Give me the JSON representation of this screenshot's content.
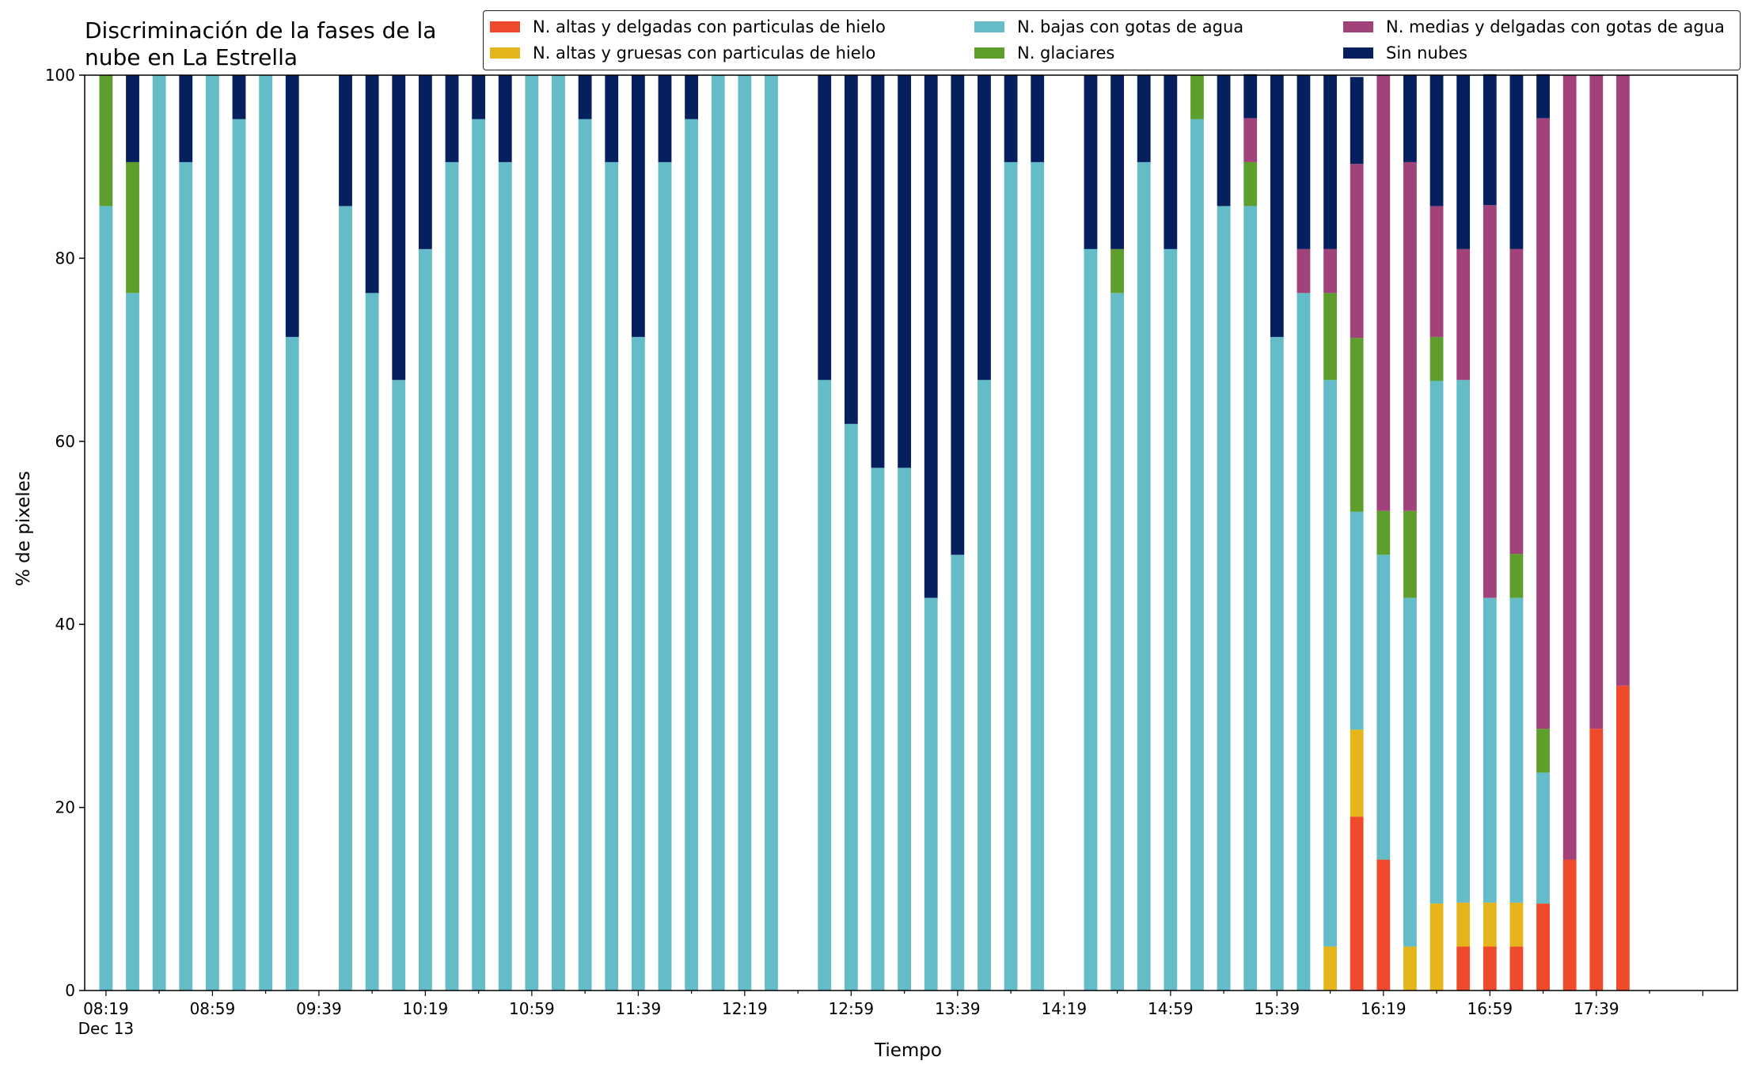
{
  "chart_data": {
    "type": "bar",
    "stacked": true,
    "title_lines": [
      "Discriminación de la fases de la",
      "nube en La Estrella"
    ],
    "xlabel": "Tiempo",
    "ylabel": "% de pixeles",
    "ylim": [
      0,
      100
    ],
    "yticks": [
      0,
      20,
      40,
      60,
      80,
      100
    ],
    "xlim_minutes_after_08_19": [
      -8,
      613
    ],
    "x_interval_minutes": 10,
    "xticks": [
      {
        "label": "08:19",
        "sublabel": "Dec 13",
        "minute": 0
      },
      {
        "label": "08:59",
        "minute": 40
      },
      {
        "label": "09:39",
        "minute": 80
      },
      {
        "label": "10:19",
        "minute": 120
      },
      {
        "label": "10:59",
        "minute": 160
      },
      {
        "label": "11:39",
        "minute": 200
      },
      {
        "label": "12:19",
        "minute": 240
      },
      {
        "label": "12:59",
        "minute": 280
      },
      {
        "label": "13:39",
        "minute": 320
      },
      {
        "label": "14:19",
        "minute": 360
      },
      {
        "label": "14:59",
        "minute": 400
      },
      {
        "label": "15:39",
        "minute": 440
      },
      {
        "label": "16:19",
        "minute": 480
      },
      {
        "label": "16:59",
        "minute": 520
      },
      {
        "label": "17:39",
        "minute": 560
      }
    ],
    "legend_position": "top",
    "series": [
      {
        "name": "N. altas y delgadas con particulas de hielo",
        "color": "#ef4a2b"
      },
      {
        "name": "N. altas y gruesas con particulas de hielo",
        "color": "#e6b51c"
      },
      {
        "name": "N. bajas con gotas de agua",
        "color": "#63bcc8"
      },
      {
        "name": "N. glaciares",
        "color": "#5e9e2c"
      },
      {
        "name": "N. medias y delgadas con gotas de agua",
        "color": "#a2427a"
      },
      {
        "name": "Sin nubes",
        "color": "#061f5f"
      }
    ],
    "bars": [
      {
        "time": "08:19",
        "values": [
          0,
          0,
          85.7,
          14.3,
          0,
          0
        ]
      },
      {
        "time": "08:29",
        "values": [
          0,
          0,
          76.2,
          14.3,
          0,
          9.5
        ]
      },
      {
        "time": "08:39",
        "values": [
          0,
          0,
          100,
          0,
          0,
          0
        ]
      },
      {
        "time": "08:49",
        "values": [
          0,
          0,
          90.5,
          0,
          0,
          9.5
        ]
      },
      {
        "time": "08:59",
        "values": [
          0,
          0,
          100,
          0,
          0,
          0
        ]
      },
      {
        "time": "09:09",
        "values": [
          0,
          0,
          95.2,
          0,
          0,
          4.8
        ]
      },
      {
        "time": "09:19",
        "values": [
          0,
          0,
          100,
          0,
          0,
          0
        ]
      },
      {
        "time": "09:29",
        "values": [
          0,
          0,
          71.4,
          0,
          0,
          28.6
        ]
      },
      {
        "time": "09:49",
        "values": [
          0,
          0,
          85.7,
          0,
          0,
          14.3
        ]
      },
      {
        "time": "09:59",
        "values": [
          0,
          0,
          76.2,
          0,
          0,
          23.8
        ]
      },
      {
        "time": "10:09",
        "values": [
          0,
          0,
          66.7,
          0,
          0,
          33.3
        ]
      },
      {
        "time": "10:19",
        "values": [
          0,
          0,
          81.0,
          0,
          0,
          19.0
        ]
      },
      {
        "time": "10:29",
        "values": [
          0,
          0,
          90.5,
          0,
          0,
          9.5
        ]
      },
      {
        "time": "10:39",
        "values": [
          0,
          0,
          95.2,
          0,
          0,
          4.8
        ]
      },
      {
        "time": "10:49",
        "values": [
          0,
          0,
          90.5,
          0,
          0,
          9.5
        ]
      },
      {
        "time": "10:59",
        "values": [
          0,
          0,
          100,
          0,
          0,
          0
        ]
      },
      {
        "time": "11:09",
        "values": [
          0,
          0,
          100,
          0,
          0,
          0
        ]
      },
      {
        "time": "11:19",
        "values": [
          0,
          0,
          95.2,
          0,
          0,
          4.8
        ]
      },
      {
        "time": "11:29",
        "values": [
          0,
          0,
          90.5,
          0,
          0,
          9.5
        ]
      },
      {
        "time": "11:39",
        "values": [
          0,
          0,
          71.4,
          0,
          0,
          28.6
        ]
      },
      {
        "time": "11:49",
        "values": [
          0,
          0,
          90.5,
          0,
          0,
          9.5
        ]
      },
      {
        "time": "11:59",
        "values": [
          0,
          0,
          95.2,
          0,
          0,
          4.8
        ]
      },
      {
        "time": "12:09",
        "values": [
          0,
          0,
          100,
          0,
          0,
          0
        ]
      },
      {
        "time": "12:19",
        "values": [
          0,
          0,
          100,
          0,
          0,
          0
        ]
      },
      {
        "time": "12:29",
        "values": [
          0,
          0,
          100,
          0,
          0,
          0
        ]
      },
      {
        "time": "12:49",
        "values": [
          0,
          0,
          66.7,
          0,
          0,
          33.3
        ]
      },
      {
        "time": "12:59",
        "values": [
          0,
          0,
          61.9,
          0,
          0,
          38.1
        ]
      },
      {
        "time": "13:09",
        "values": [
          0,
          0,
          57.1,
          0,
          0,
          42.9
        ]
      },
      {
        "time": "13:19",
        "values": [
          0,
          0,
          57.1,
          0,
          0,
          42.9
        ]
      },
      {
        "time": "13:29",
        "values": [
          0,
          0,
          42.9,
          0,
          0,
          57.1
        ]
      },
      {
        "time": "13:39",
        "values": [
          0,
          0,
          47.6,
          0,
          0,
          52.4
        ]
      },
      {
        "time": "13:49",
        "values": [
          0,
          0,
          66.7,
          0,
          0,
          33.3
        ]
      },
      {
        "time": "13:59",
        "values": [
          0,
          0,
          90.5,
          0,
          0,
          9.5
        ]
      },
      {
        "time": "14:09",
        "values": [
          0,
          0,
          90.5,
          0,
          0,
          9.5
        ]
      },
      {
        "time": "14:29",
        "values": [
          0,
          0,
          81.0,
          0,
          0,
          19.0
        ]
      },
      {
        "time": "14:39",
        "values": [
          0,
          0,
          76.2,
          4.8,
          0,
          19.0
        ]
      },
      {
        "time": "14:49",
        "values": [
          0,
          0,
          90.5,
          0,
          0,
          9.5
        ]
      },
      {
        "time": "14:59",
        "values": [
          0,
          0,
          81.0,
          0,
          0,
          19.0
        ]
      },
      {
        "time": "15:09",
        "values": [
          0,
          0,
          95.2,
          4.8,
          0,
          0
        ]
      },
      {
        "time": "15:19",
        "values": [
          0,
          0,
          85.7,
          0,
          0,
          14.3
        ]
      },
      {
        "time": "15:29",
        "values": [
          0,
          0,
          85.7,
          4.8,
          4.8,
          4.8
        ]
      },
      {
        "time": "15:39",
        "values": [
          0,
          0,
          71.4,
          0,
          0,
          28.6
        ]
      },
      {
        "time": "15:49",
        "values": [
          0,
          0,
          76.2,
          0,
          4.8,
          19.0
        ]
      },
      {
        "time": "15:59",
        "values": [
          0,
          4.8,
          61.9,
          9.5,
          4.8,
          19.0
        ]
      },
      {
        "time": "16:09",
        "values": [
          19.0,
          9.5,
          23.8,
          19.0,
          19.0,
          9.5
        ]
      },
      {
        "time": "16:19",
        "values": [
          14.3,
          0,
          33.3,
          4.8,
          47.6,
          0
        ]
      },
      {
        "time": "16:29",
        "values": [
          0,
          4.8,
          38.1,
          9.5,
          38.1,
          9.5
        ]
      },
      {
        "time": "16:39",
        "values": [
          0,
          9.5,
          57.1,
          4.8,
          14.3,
          14.3
        ]
      },
      {
        "time": "16:49",
        "values": [
          4.8,
          4.8,
          57.1,
          0,
          14.3,
          19.0
        ]
      },
      {
        "time": "16:59",
        "values": [
          4.8,
          4.8,
          33.3,
          0,
          42.9,
          14.3
        ]
      },
      {
        "time": "17:09",
        "values": [
          4.8,
          4.8,
          33.3,
          4.8,
          33.3,
          19.0
        ]
      },
      {
        "time": "17:19",
        "values": [
          9.5,
          0,
          14.3,
          4.8,
          66.7,
          4.8
        ]
      },
      {
        "time": "17:29",
        "values": [
          14.3,
          0,
          0,
          0,
          85.7,
          0
        ]
      },
      {
        "time": "17:39",
        "values": [
          28.6,
          0,
          0,
          0,
          71.4,
          0
        ]
      },
      {
        "time": "17:49",
        "values": [
          33.3,
          0,
          0,
          0,
          66.7,
          0
        ]
      }
    ]
  }
}
